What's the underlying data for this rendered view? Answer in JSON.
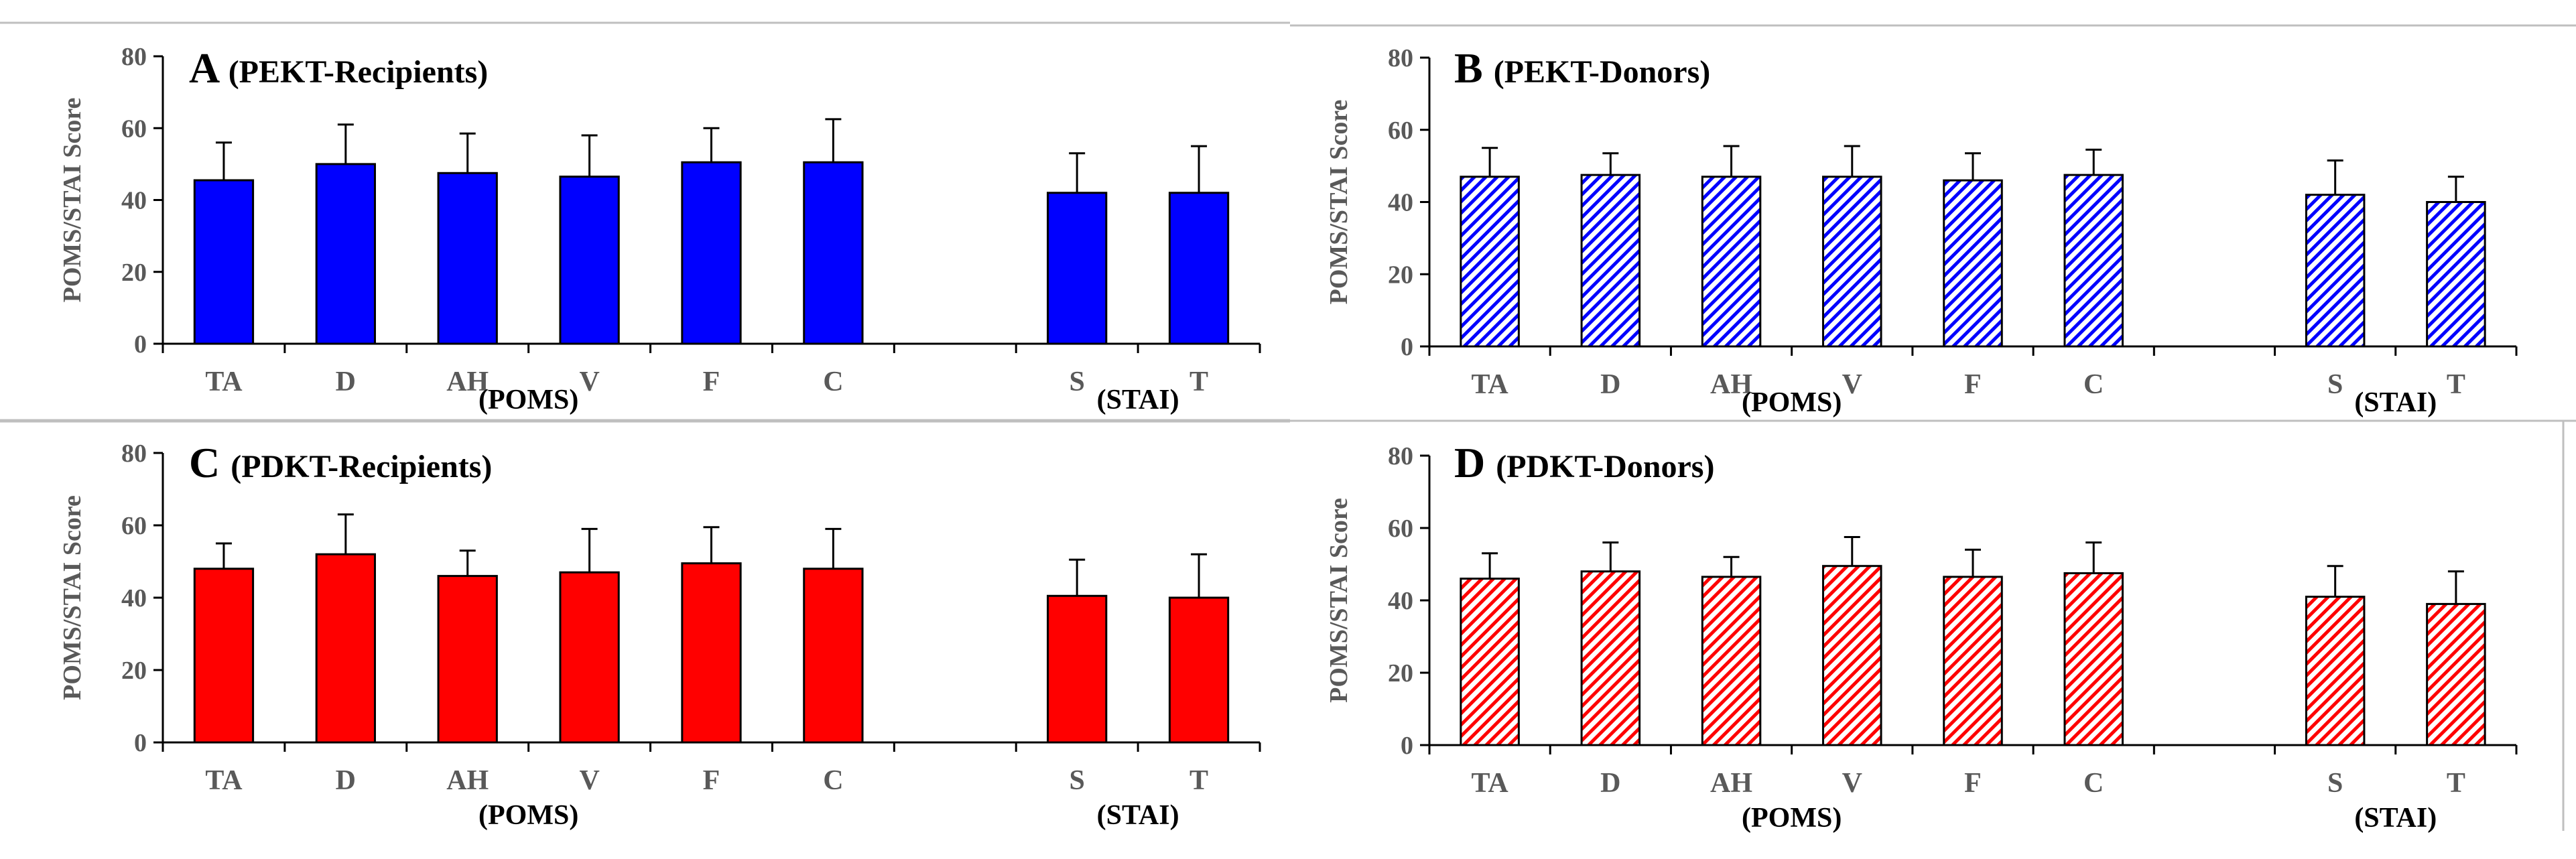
{
  "colors": {
    "pekt": "#0000ff",
    "pdkt": "#ff0000",
    "axis": "#000000",
    "tick_text": "#595959",
    "divider": "#bfbfbf"
  },
  "chart_data": [
    {
      "type": "bar",
      "panel_letter": "A",
      "title": "(PEKT-Recipients)",
      "ylabel": "POMS/STAI Score",
      "ylim": [
        0,
        80
      ],
      "yticks": [
        0,
        20,
        40,
        60,
        80
      ],
      "fill": "solid",
      "color": "#0000ff",
      "categories": [
        "TA",
        "D",
        "AH",
        "V",
        "F",
        "C",
        "",
        "S",
        "T"
      ],
      "values": [
        45.5,
        50,
        47.5,
        46.5,
        50.5,
        50.5,
        null,
        42,
        42
      ],
      "error_upper": [
        56,
        61,
        58.5,
        58,
        60,
        62.5,
        null,
        53,
        55
      ],
      "groups": [
        {
          "label": "(POMS)",
          "from": 0,
          "to": 5
        },
        {
          "label": "(STAI)",
          "from": 7,
          "to": 8
        }
      ]
    },
    {
      "type": "bar",
      "panel_letter": "B",
      "title": "(PEKT-Donors)",
      "ylabel": "POMS/STAI Score",
      "ylim": [
        0,
        80
      ],
      "yticks": [
        0,
        20,
        40,
        60,
        80
      ],
      "fill": "hatched",
      "color": "#0000ff",
      "categories": [
        "TA",
        "D",
        "AH",
        "V",
        "F",
        "C",
        "",
        "S",
        "T"
      ],
      "values": [
        47,
        47.5,
        47,
        47,
        46,
        47.5,
        null,
        42,
        40
      ],
      "error_upper": [
        55,
        53.5,
        55.5,
        55.5,
        53.5,
        54.5,
        null,
        51.5,
        47
      ],
      "groups": [
        {
          "label": "(POMS)",
          "from": 0,
          "to": 5
        },
        {
          "label": "(STAI)",
          "from": 7,
          "to": 8
        }
      ]
    },
    {
      "type": "bar",
      "panel_letter": "C",
      "title": "(PDKT-Recipients)",
      "ylabel": "POMS/STAI Score",
      "ylim": [
        0,
        80
      ],
      "yticks": [
        0,
        20,
        40,
        60,
        80
      ],
      "fill": "solid",
      "color": "#ff0000",
      "categories": [
        "TA",
        "D",
        "AH",
        "V",
        "F",
        "C",
        "",
        "S",
        "T"
      ],
      "values": [
        48,
        52,
        46,
        47,
        49.5,
        48,
        null,
        40.5,
        40
      ],
      "error_upper": [
        55,
        63,
        53,
        59,
        59.5,
        59,
        null,
        50.5,
        52
      ],
      "groups": [
        {
          "label": "(POMS)",
          "from": 0,
          "to": 5
        },
        {
          "label": "(STAI)",
          "from": 7,
          "to": 8
        }
      ]
    },
    {
      "type": "bar",
      "panel_letter": "D",
      "title": "(PDKT-Donors)",
      "ylabel": "POMS/STAI Score",
      "ylim": [
        0,
        80
      ],
      "yticks": [
        0,
        20,
        40,
        60,
        80
      ],
      "fill": "hatched",
      "color": "#ff0000",
      "categories": [
        "TA",
        "D",
        "AH",
        "V",
        "F",
        "C",
        "",
        "S",
        "T"
      ],
      "values": [
        46,
        48,
        46.5,
        49.5,
        46.5,
        47.5,
        null,
        41,
        39
      ],
      "error_upper": [
        53,
        56,
        52,
        57.5,
        54,
        56,
        null,
        49.5,
        48
      ],
      "groups": [
        {
          "label": "(POMS)",
          "from": 0,
          "to": 5
        },
        {
          "label": "(STAI)",
          "from": 7,
          "to": 8
        }
      ]
    }
  ]
}
